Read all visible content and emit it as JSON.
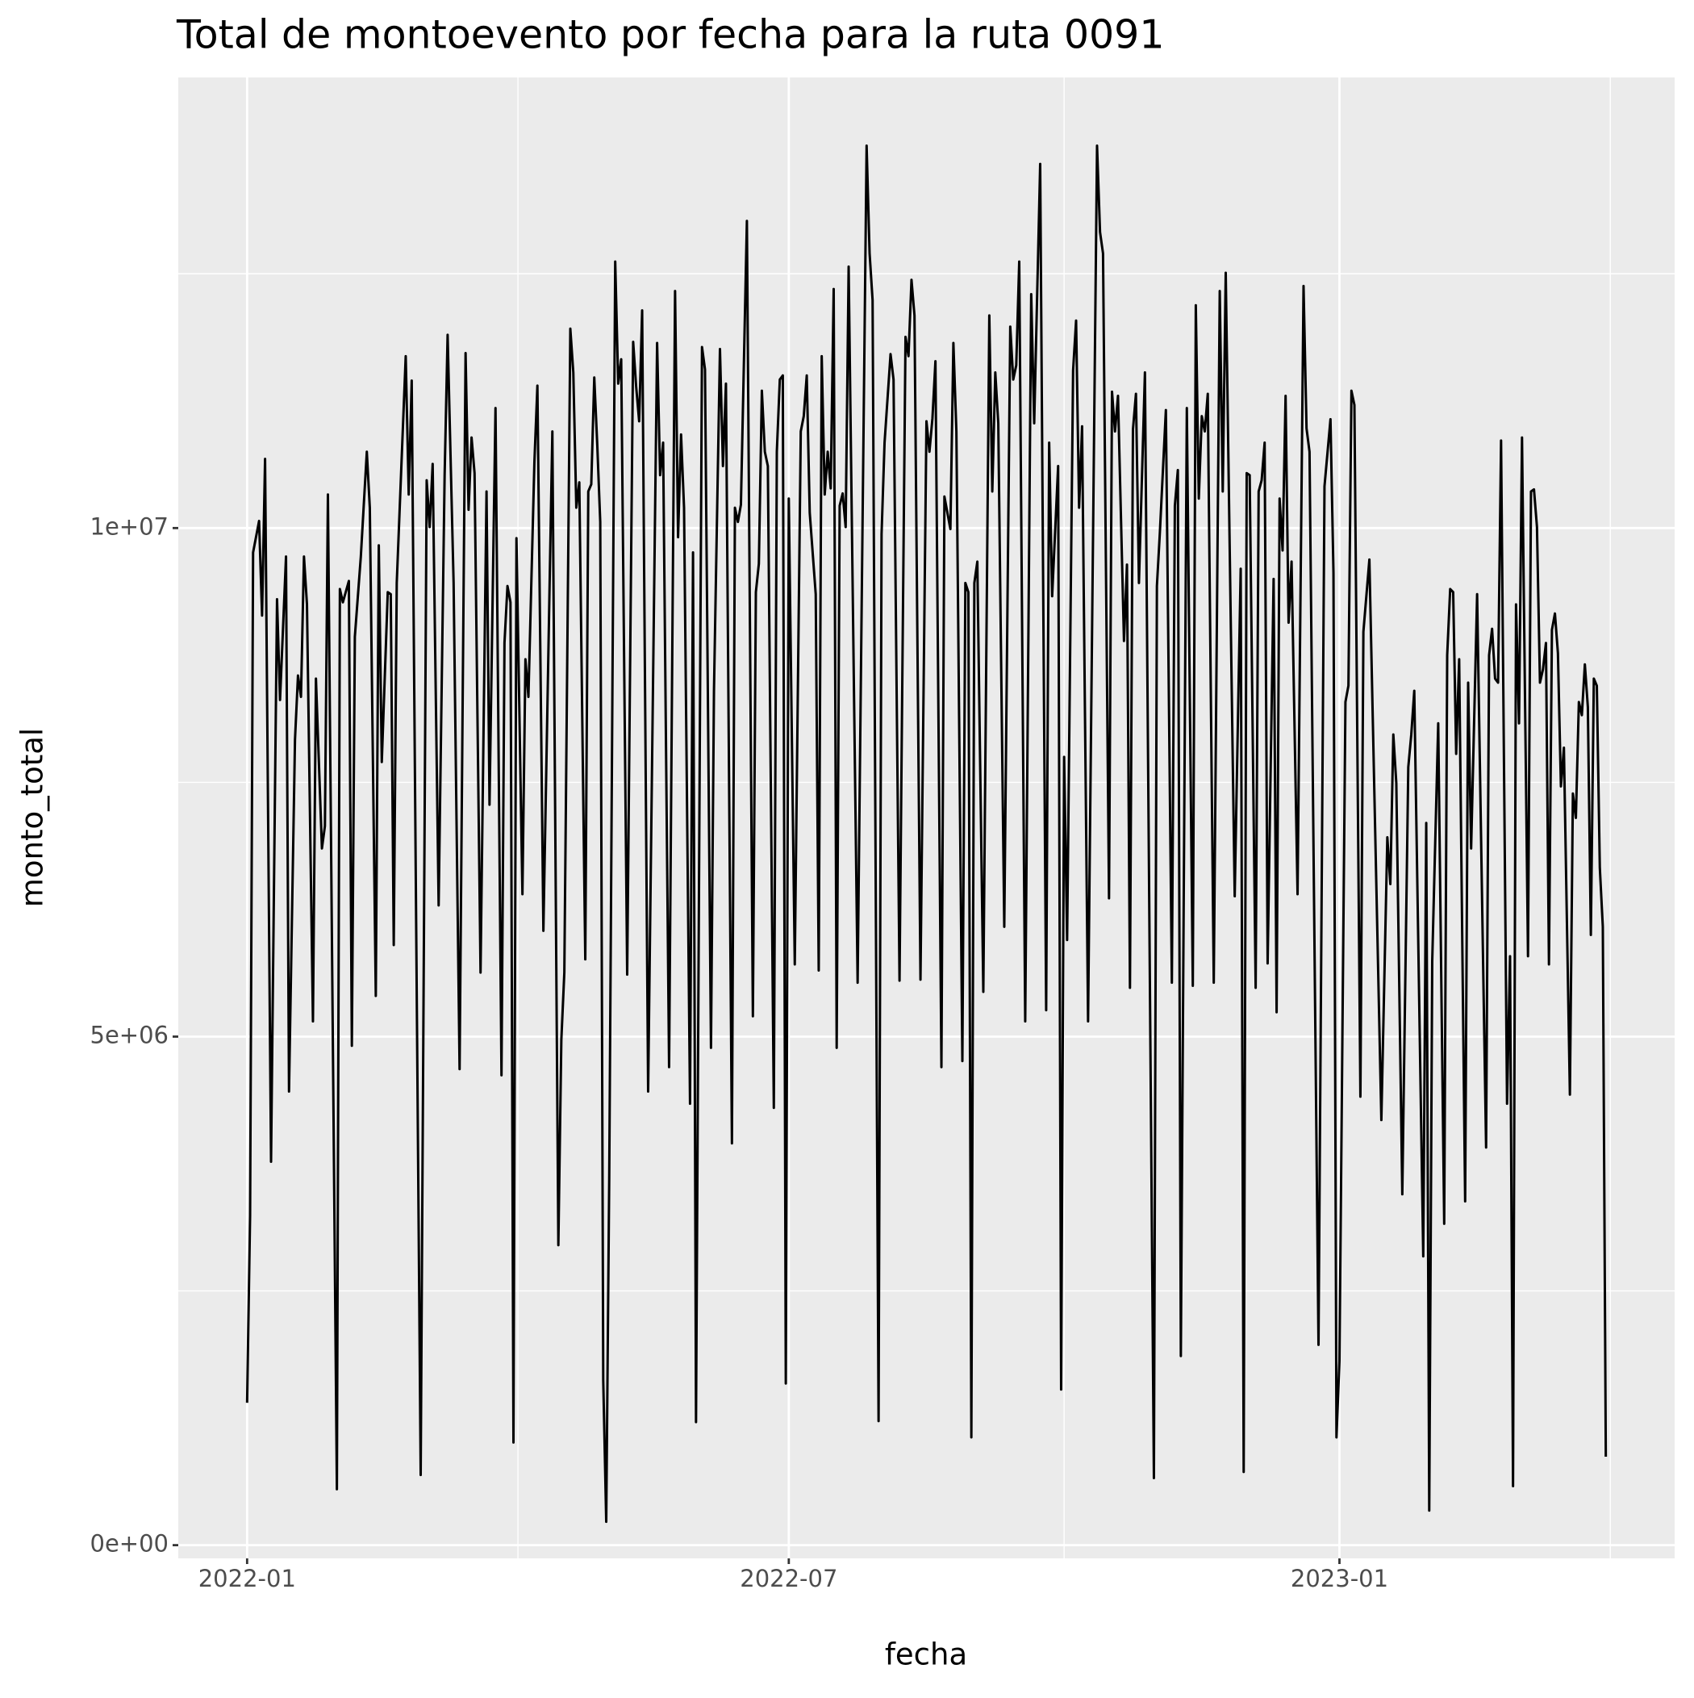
{
  "chart_data": {
    "type": "line",
    "title": "Total de montoevento por fecha para la ruta 0091",
    "x_label": "fecha",
    "y_label": "monto_total",
    "color": "#000000",
    "grid": true,
    "xlim": [
      -23,
      477
    ],
    "xticks": [
      {
        "value": 0,
        "label": "2022-01"
      },
      {
        "value": 181,
        "label": "2022-07"
      },
      {
        "value": 365,
        "label": "2023-01"
      }
    ],
    "ylim": [
      -130000,
      14430000
    ],
    "yticks": [
      {
        "value": 0,
        "label": "0e+00"
      },
      {
        "value": 5000000,
        "label": "5e+06"
      },
      {
        "value": 10000000,
        "label": "1e+07"
      }
    ],
    "x": [
      0,
      1,
      2,
      4,
      5,
      6,
      8,
      10,
      11,
      13,
      14,
      16,
      17,
      18,
      19,
      20,
      22,
      23,
      25,
      26,
      27,
      30,
      31,
      32,
      34,
      35,
      36,
      38,
      40,
      41,
      43,
      44,
      45,
      47,
      48,
      49,
      50,
      53,
      54,
      55,
      58,
      60,
      61,
      62,
      64,
      66,
      67,
      69,
      71,
      73,
      74,
      75,
      76,
      78,
      80,
      81,
      83,
      85,
      86,
      87,
      88,
      89,
      90,
      92,
      93,
      94,
      96,
      97,
      99,
      102,
      104,
      105,
      106,
      108,
      109,
      110,
      111,
      113,
      114,
      115,
      116,
      117,
      118,
      119,
      120,
      121,
      123,
      124,
      125,
      127,
      129,
      130,
      131,
      132,
      134,
      137,
      138,
      139,
      141,
      143,
      144,
      145,
      146,
      148,
      149,
      150,
      152,
      153,
      155,
      156,
      158,
      159,
      160,
      162,
      163,
      164,
      165,
      167,
      169,
      170,
      171,
      172,
      173,
      174,
      176,
      177,
      178,
      179,
      180,
      181,
      183,
      185,
      186,
      187,
      188,
      190,
      191,
      192,
      193,
      194,
      195,
      196,
      197,
      198,
      199,
      200,
      201,
      204,
      207,
      208,
      209,
      211,
      212,
      213,
      215,
      216,
      218,
      220,
      221,
      222,
      223,
      225,
      227,
      228,
      229,
      230,
      232,
      233,
      235,
      236,
      237,
      239,
      240,
      241,
      242,
      243,
      244,
      246,
      248,
      249,
      250,
      251,
      253,
      255,
      256,
      257,
      258,
      260,
      262,
      263,
      265,
      267,
      268,
      269,
      271,
      272,
      273,
      274,
      276,
      277,
      278,
      279,
      281,
      284,
      285,
      286,
      288,
      289,
      290,
      291,
      293,
      294,
      295,
      296,
      297,
      298,
      300,
      303,
      304,
      305,
      307,
      309,
      310,
      311,
      312,
      314,
      316,
      317,
      318,
      319,
      320,
      321,
      323,
      325,
      326,
      327,
      330,
      332,
      333,
      334,
      335,
      337,
      338,
      339,
      340,
      341,
      343,
      344,
      345,
      346,
      347,
      348,
      349,
      351,
      353,
      354,
      355,
      358,
      360,
      362,
      363,
      364,
      365,
      367,
      368,
      369,
      370,
      372,
      373,
      375,
      379,
      381,
      382,
      383,
      384,
      386,
      388,
      389,
      390,
      393,
      394,
      395,
      396,
      398,
      400,
      401,
      402,
      403,
      404,
      405,
      407,
      408,
      409,
      411,
      414,
      415,
      416,
      417,
      418,
      419,
      421,
      422,
      423,
      424,
      425,
      426,
      428,
      429,
      430,
      431,
      432,
      433,
      434,
      435,
      436,
      437,
      438,
      439,
      440,
      442,
      443,
      444,
      445,
      446,
      447,
      448,
      449,
      450,
      451,
      452,
      453,
      454
    ],
    "values": [
      1400000,
      3240000,
      9760000,
      10070000,
      9140000,
      10680000,
      3770000,
      9300000,
      8310000,
      9720000,
      4460000,
      7920000,
      8550000,
      8340000,
      9720000,
      9250000,
      5150000,
      8520000,
      6850000,
      7070000,
      10330000,
      550000,
      9400000,
      9270000,
      9480000,
      4910000,
      8930000,
      9720000,
      10750000,
      10200000,
      5400000,
      9830000,
      7700000,
      9370000,
      9350000,
      5900000,
      9460000,
      11690000,
      10330000,
      11450000,
      690000,
      10470000,
      10010000,
      10630000,
      6290000,
      10520000,
      11900000,
      9460000,
      4680000,
      11720000,
      10180000,
      10890000,
      10540000,
      5630000,
      10360000,
      7280000,
      11180000,
      4620000,
      8870000,
      9430000,
      9270000,
      1010000,
      9900000,
      6400000,
      8710000,
      8340000,
      10650000,
      11400000,
      6040000,
      10950000,
      2950000,
      4970000,
      5630000,
      11960000,
      11530000,
      10200000,
      10450000,
      5760000,
      10360000,
      10430000,
      11480000,
      10820000,
      10060000,
      1620000,
      230000,
      3610000,
      12620000,
      11420000,
      11660000,
      5610000,
      11830000,
      11390000,
      11050000,
      12140000,
      4460000,
      11820000,
      10520000,
      10840000,
      4700000,
      12330000,
      9910000,
      10920000,
      10200000,
      4340000,
      9760000,
      1210000,
      11780000,
      11560000,
      4890000,
      8400000,
      11760000,
      10610000,
      11420000,
      3950000,
      10200000,
      10060000,
      10230000,
      13020000,
      5200000,
      9370000,
      9650000,
      11350000,
      10750000,
      10610000,
      4300000,
      10750000,
      11460000,
      11500000,
      1590000,
      10290000,
      5710000,
      10950000,
      11100000,
      11500000,
      10150000,
      9350000,
      5650000,
      11690000,
      10330000,
      10750000,
      10390000,
      12350000,
      4890000,
      10220000,
      10340000,
      10010000,
      12570000,
      5530000,
      13760000,
      12700000,
      12240000,
      1220000,
      9940000,
      10840000,
      11710000,
      11460000,
      5550000,
      11880000,
      11690000,
      12440000,
      12090000,
      5560000,
      11050000,
      10750000,
      11080000,
      11640000,
      4700000,
      10310000,
      9990000,
      11820000,
      10950000,
      4760000,
      9460000,
      9370000,
      1060000,
      9460000,
      9670000,
      5440000,
      12090000,
      10360000,
      11530000,
      11030000,
      6080000,
      11980000,
      11460000,
      11600000,
      12620000,
      5150000,
      12300000,
      11030000,
      13580000,
      5260000,
      10840000,
      9330000,
      10610000,
      1530000,
      7750000,
      5950000,
      11550000,
      12040000,
      10200000,
      11000000,
      5150000,
      13760000,
      12910000,
      12700000,
      6360000,
      11340000,
      10950000,
      11300000,
      8890000,
      9640000,
      5480000,
      10970000,
      11320000,
      9460000,
      11530000,
      660000,
      9430000,
      9960000,
      11160000,
      5530000,
      10220000,
      10570000,
      1860000,
      11180000,
      5500000,
      12190000,
      10290000,
      11100000,
      10950000,
      11320000,
      5530000,
      12330000,
      10360000,
      12510000,
      6380000,
      9600000,
      720000,
      10540000,
      10520000,
      5480000,
      10360000,
      10470000,
      10840000,
      5720000,
      9500000,
      5240000,
      10290000,
      9780000,
      11300000,
      9070000,
      9670000,
      6400000,
      12380000,
      10980000,
      10750000,
      1970000,
      10410000,
      11070000,
      9560000,
      1060000,
      1810000,
      8290000,
      8450000,
      11350000,
      11210000,
      4410000,
      8980000,
      9690000,
      4180000,
      6960000,
      6500000,
      7970000,
      7490000,
      3450000,
      7650000,
      7970000,
      8400000,
      2840000,
      7100000,
      340000,
      5740000,
      8080000,
      3160000,
      8750000,
      9400000,
      9370000,
      7780000,
      8710000,
      3380000,
      8480000,
      6850000,
      9350000,
      3910000,
      8750000,
      9010000,
      8520000,
      8480000,
      10860000,
      4340000,
      5790000,
      580000,
      9250000,
      8080000,
      10890000,
      5790000,
      10360000,
      10380000,
      10010000,
      8480000,
      8610000,
      8870000,
      5710000,
      9000000,
      9160000,
      8770000,
      7460000,
      7840000,
      4430000,
      7390000,
      7150000,
      8290000,
      8160000,
      8660000,
      8240000,
      6000000,
      8520000,
      8450000,
      6660000,
      6080000,
      870000
    ]
  }
}
